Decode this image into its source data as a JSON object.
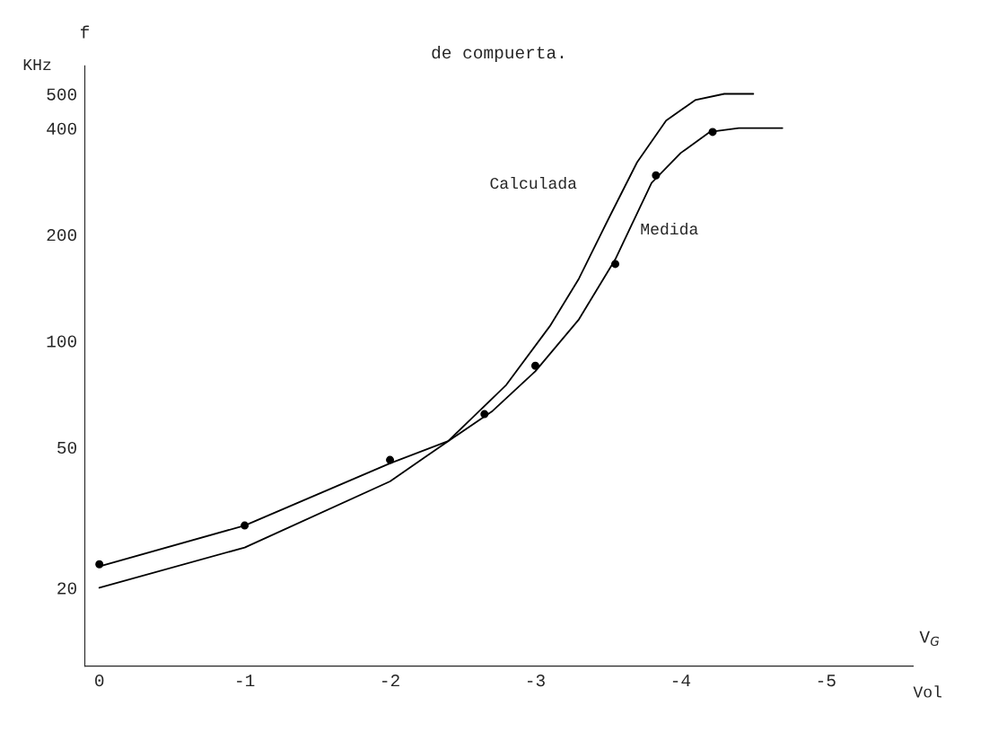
{
  "chart_data": {
    "type": "line",
    "title": "de compuerta.",
    "xlabel": "V$_{G}$",
    "ylabel": "f",
    "annotations": [
      "KHz",
      "Vol"
    ],
    "log": "y",
    "xlim": [
      0.1,
      -5.6
    ],
    "ylim": [
      12,
      600
    ],
    "xticks": [
      0,
      -1,
      -2,
      -3,
      -4,
      -5
    ],
    "yticks": [
      20,
      50,
      100,
      200,
      400,
      500
    ],
    "grid": false,
    "legend": false,
    "series": [
      {
        "name": "Calculada",
        "color": "#000000",
        "marker": "none",
        "x": [
          0,
          -1,
          -2,
          -2.4,
          -2.8,
          -3.1,
          -3.3,
          -3.5,
          -3.7,
          -3.9,
          -4.1,
          -4.3,
          -4.5
        ],
        "values": [
          20,
          26,
          40,
          52,
          75,
          110,
          150,
          220,
          320,
          420,
          480,
          500,
          500
        ]
      },
      {
        "name": "Medida",
        "color": "#000000",
        "marker": "none",
        "x": [
          0,
          -1,
          -2,
          -2.4,
          -2.7,
          -3,
          -3.3,
          -3.55,
          -3.8,
          -4,
          -4.2,
          -4.4,
          -4.7
        ],
        "values": [
          23,
          30,
          45,
          52,
          63,
          82,
          115,
          170,
          280,
          340,
          390,
          400,
          400
        ]
      },
      {
        "color": "#000000",
        "type": "scatter",
        "marker": "circle",
        "x": [
          0,
          -1,
          -2,
          -2.65,
          -3,
          -3.55,
          -3.83,
          -4.22
        ],
        "values": [
          23.3,
          30,
          46,
          62,
          85,
          165,
          294,
          390
        ]
      }
    ]
  }
}
